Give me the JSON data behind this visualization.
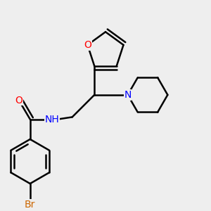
{
  "background_color": "#eeeeee",
  "bond_color": "#000000",
  "bond_width": 1.8,
  "atom_colors": {
    "O": "#ff0000",
    "N": "#0000ff",
    "Br": "#cc6600",
    "NH": "#0000ff"
  },
  "font_size_atoms": 10,
  "figsize": [
    3.0,
    3.0
  ],
  "dpi": 100
}
